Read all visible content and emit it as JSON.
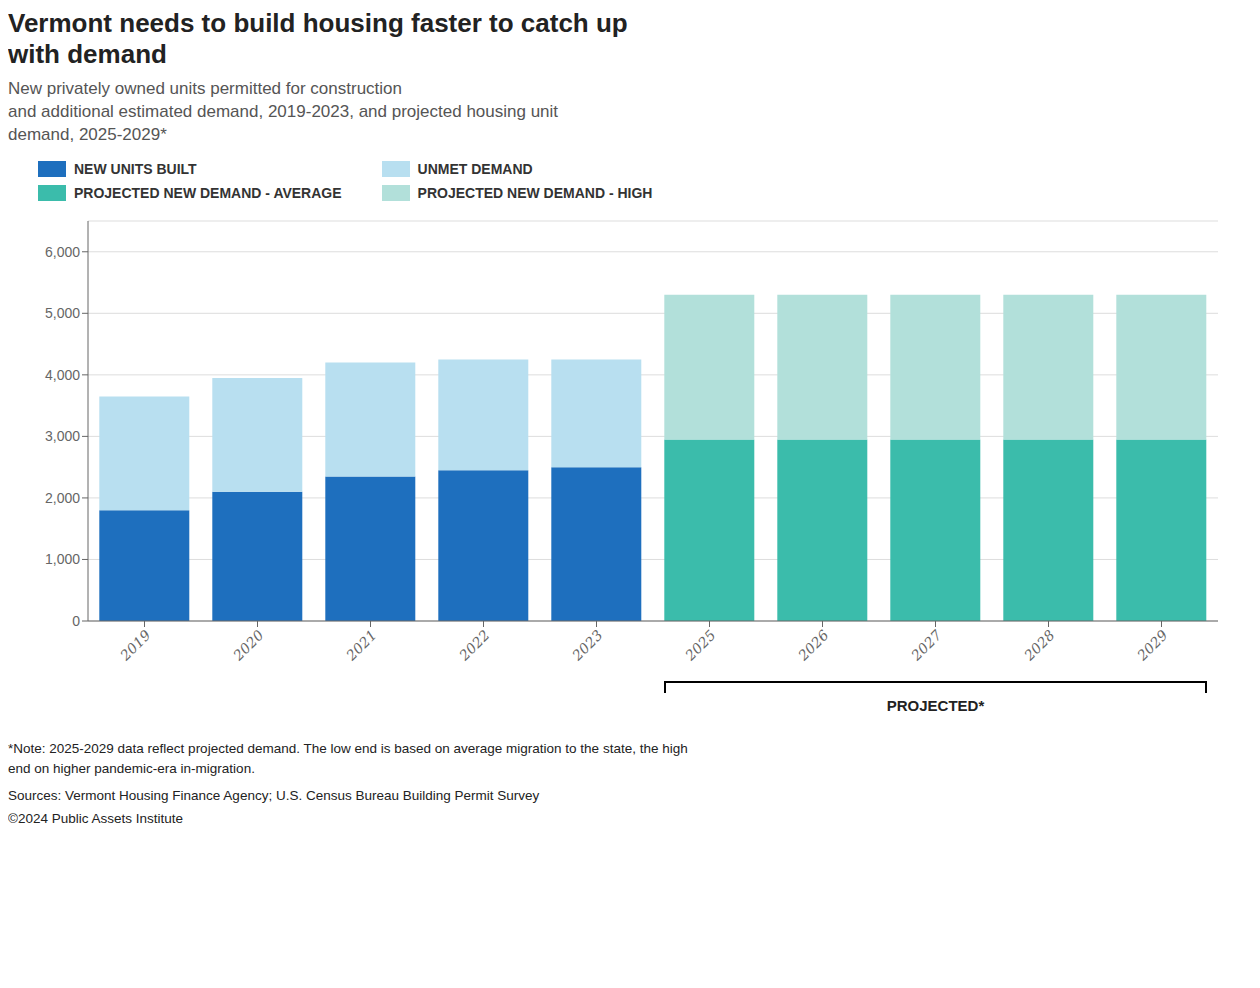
{
  "chart_data": {
    "type": "bar",
    "title": "Vermont needs to build housing faster to catch up\nwith demand",
    "subtitle": "New privately owned units permitted for construction\nand additional estimated demand, 2019-2023, and projected housing unit\ndemand, 2025-2029*",
    "categories": [
      "2019",
      "2020",
      "2021",
      "2022",
      "2023",
      "2025",
      "2026",
      "2027",
      "2028",
      "2029"
    ],
    "series": [
      {
        "name": "NEW UNITS BUILT",
        "color": "#1e6fbe",
        "values": [
          1800,
          2100,
          2350,
          2450,
          2500,
          null,
          null,
          null,
          null,
          null
        ]
      },
      {
        "name": "UNMET DEMAND",
        "color": "#b8dff0",
        "values": [
          1850,
          1850,
          1850,
          1800,
          1750,
          null,
          null,
          null,
          null,
          null
        ]
      },
      {
        "name": "PROJECTED NEW DEMAND - AVERAGE",
        "color": "#3bbcab",
        "values": [
          null,
          null,
          null,
          null,
          null,
          2950,
          2950,
          2950,
          2950,
          2950
        ]
      },
      {
        "name": "PROJECTED NEW DEMAND - HIGH",
        "color": "#b2e0da",
        "values": [
          null,
          null,
          null,
          null,
          null,
          2350,
          2350,
          2350,
          2350,
          2350
        ]
      }
    ],
    "stacked": true,
    "ylim": [
      0,
      6500
    ],
    "yticks": [
      0,
      {
        "value": 1000,
        "label": "1,000"
      },
      {
        "value": 2000,
        "label": "2,000"
      },
      {
        "value": 3000,
        "label": "3,000"
      },
      {
        "value": 4000,
        "label": "4,000"
      },
      {
        "value": 5000,
        "label": "5,000"
      },
      {
        "value": 6000,
        "label": "6,000"
      }
    ],
    "grid": true,
    "legend": "top",
    "annotations": [
      {
        "text": "PROJECTED*",
        "from": "2025",
        "to": "2029"
      }
    ],
    "footnote": "*Note: 2025-2029 data reflect projected demand. The low end is based on average migration to the state, the high\nend on higher pandemic-era in-migration.",
    "sources": [
      "Sources: Vermont Housing Finance Agency; U.S. Census Bureau Building Permit Survey",
      "©2024 Public Assets Institute"
    ]
  }
}
